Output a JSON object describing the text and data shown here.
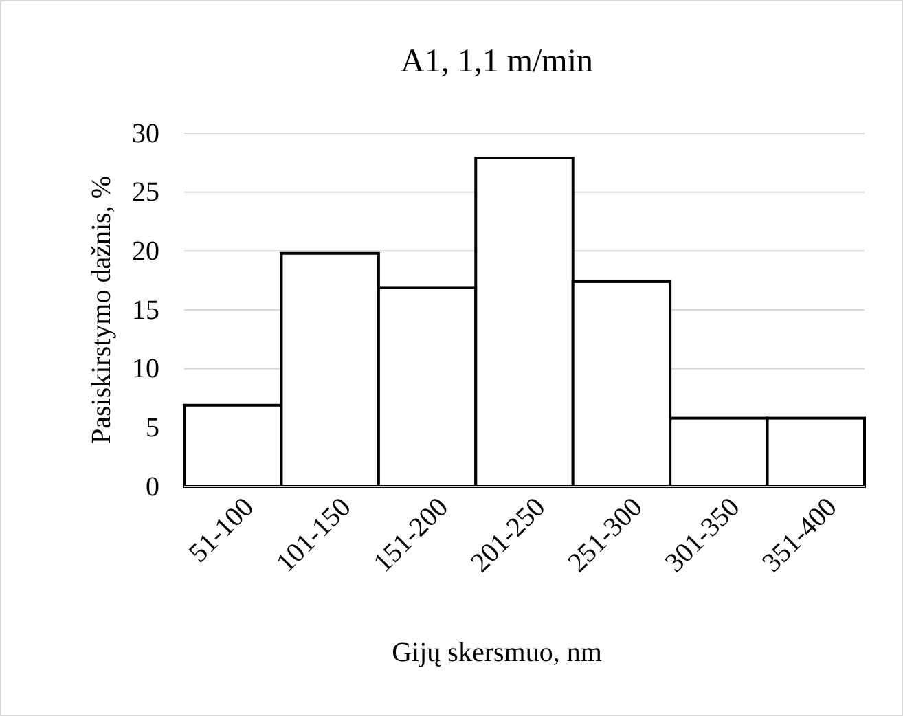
{
  "chart_data": {
    "type": "bar",
    "title": "A1, 1,1 m/min",
    "xlabel": "Gijų skersmuo, nm",
    "ylabel": "Pasiskirstymo dažnis, %",
    "categories": [
      "51-100",
      "101-150",
      "151-200",
      "201-250",
      "251-300",
      "301-350",
      "351-400"
    ],
    "values": [
      6.9,
      19.8,
      16.9,
      27.9,
      17.4,
      5.8,
      5.8
    ],
    "color": "#ffffff",
    "ylim": [
      0,
      30
    ],
    "yticks": [
      0,
      5,
      10,
      15,
      20,
      25,
      30
    ],
    "grid": "y"
  }
}
